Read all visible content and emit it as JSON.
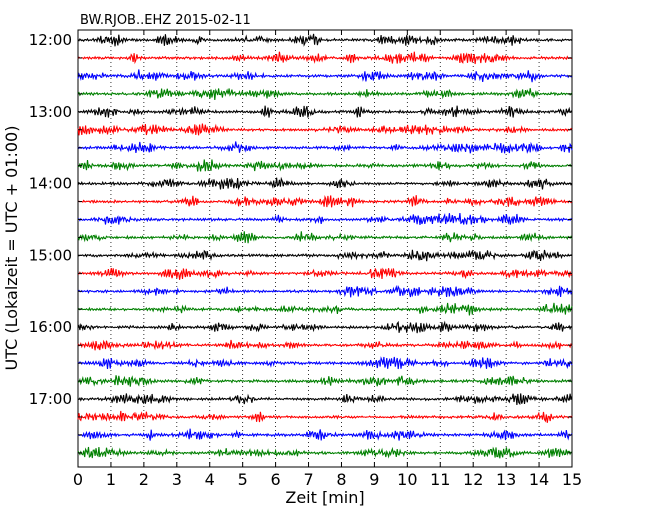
{
  "chart_data": {
    "type": "line",
    "title": "BW.RJOB..EHZ 2015-02-11",
    "xlabel": "Zeit  [min]",
    "ylabel": "UTC (Lokalzeit = UTC + 01:00)",
    "xlim": [
      0,
      15
    ],
    "x_ticks": [
      "0",
      "1",
      "2",
      "3",
      "4",
      "5",
      "6",
      "7",
      "8",
      "9",
      "10",
      "11",
      "12",
      "13",
      "14",
      "15"
    ],
    "y_ticks": [
      "12:00",
      "13:00",
      "14:00",
      "15:00",
      "16:00",
      "17:00"
    ],
    "grid": "vertical-dotted",
    "trace_minutes": 15,
    "trace_colors": [
      "#000000",
      "#ff0000",
      "#0000ff",
      "#008000"
    ],
    "rows": [
      {
        "start": "12:00",
        "color": "#000000"
      },
      {
        "start": "12:15",
        "color": "#ff0000"
      },
      {
        "start": "12:30",
        "color": "#0000ff"
      },
      {
        "start": "12:45",
        "color": "#008000"
      },
      {
        "start": "13:00",
        "color": "#000000"
      },
      {
        "start": "13:15",
        "color": "#ff0000"
      },
      {
        "start": "13:30",
        "color": "#0000ff"
      },
      {
        "start": "13:45",
        "color": "#008000"
      },
      {
        "start": "14:00",
        "color": "#000000"
      },
      {
        "start": "14:15",
        "color": "#ff0000"
      },
      {
        "start": "14:30",
        "color": "#0000ff"
      },
      {
        "start": "14:45",
        "color": "#008000"
      },
      {
        "start": "15:00",
        "color": "#000000"
      },
      {
        "start": "15:15",
        "color": "#ff0000"
      },
      {
        "start": "15:30",
        "color": "#0000ff"
      },
      {
        "start": "15:45",
        "color": "#008000"
      },
      {
        "start": "16:00",
        "color": "#000000"
      },
      {
        "start": "16:15",
        "color": "#ff0000"
      },
      {
        "start": "16:30",
        "color": "#0000ff"
      },
      {
        "start": "16:45",
        "color": "#008000"
      },
      {
        "start": "17:00",
        "color": "#000000"
      },
      {
        "start": "17:15",
        "color": "#ff0000"
      },
      {
        "start": "17:30",
        "color": "#0000ff"
      },
      {
        "start": "17:45",
        "color": "#008000"
      }
    ]
  }
}
